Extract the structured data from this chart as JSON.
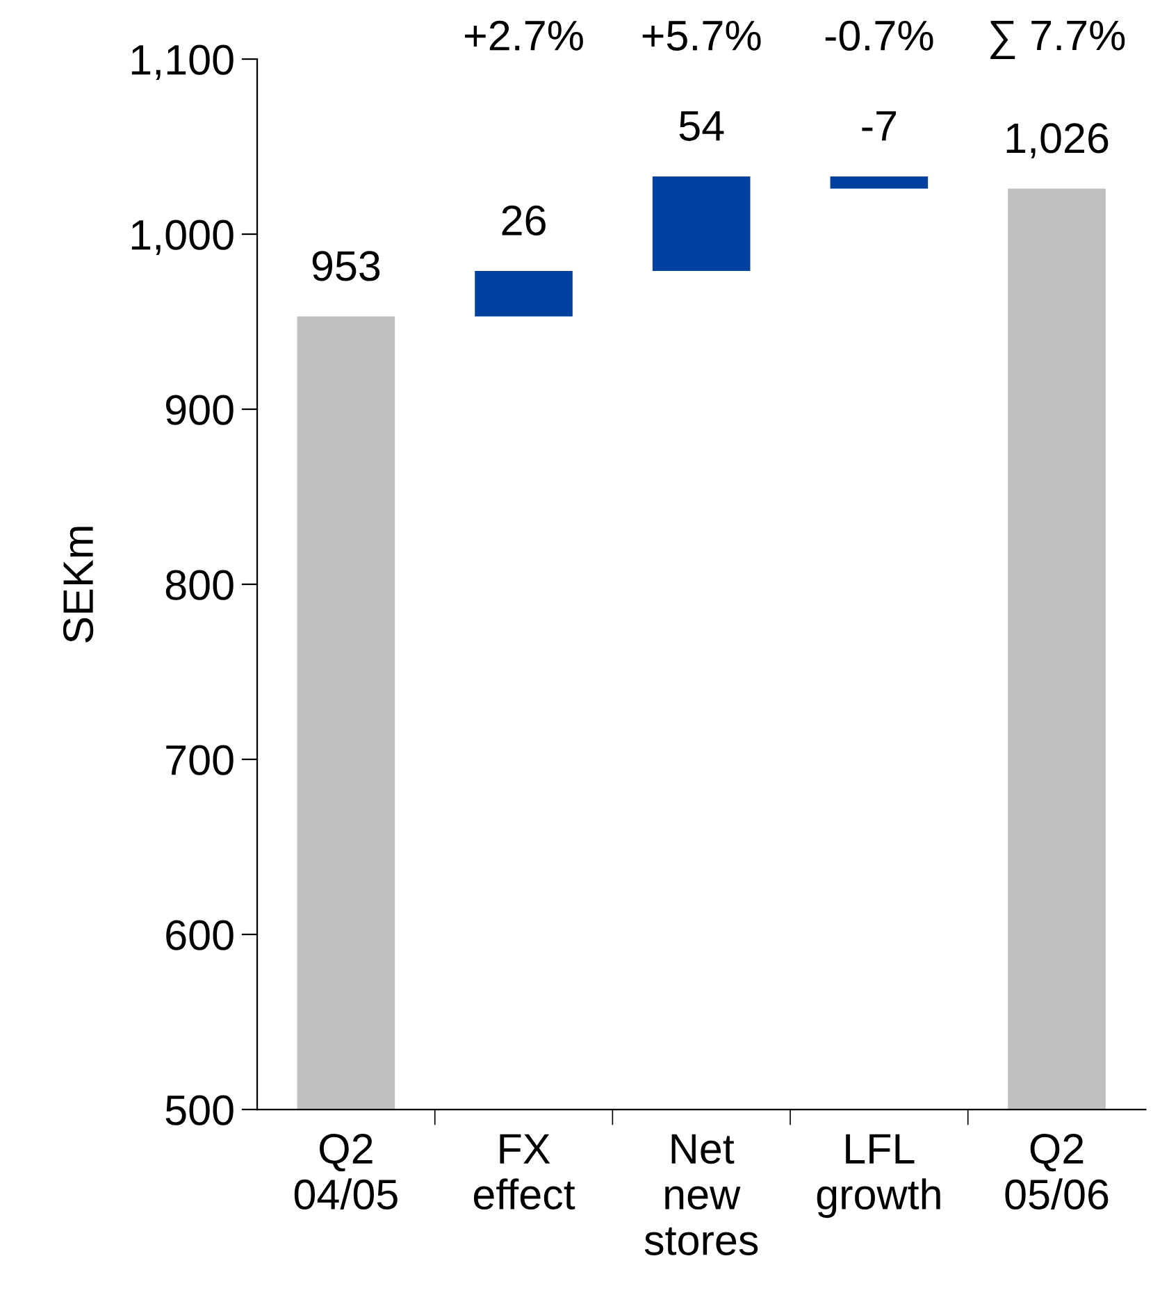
{
  "chart_data": {
    "type": "bar",
    "categories": [
      "Q2\n04/05",
      "FX\neffect",
      "Net\nnew\nstores",
      "LFL\ngrowth",
      "Q2\n05/06"
    ],
    "values": [
      953,
      26,
      54,
      -7,
      1026
    ],
    "base": [
      0,
      953,
      979,
      1033,
      0
    ],
    "colors": [
      "#c0c0c0",
      "#0041a0",
      "#0041a0",
      "#0041a0",
      "#c0c0c0"
    ],
    "value_labels": [
      "953",
      "26",
      "54",
      "-7",
      "1,026"
    ],
    "ylabel": "SEKm",
    "ylim": [
      500,
      1100
    ],
    "yticks": [
      500,
      600,
      700,
      800,
      900,
      {
        "value": 1000,
        "label": "1,000"
      },
      {
        "value": 1100,
        "label": "1,100"
      }
    ],
    "annotations": [
      "+2.7%",
      "+5.7%",
      "-0.7%",
      "∑ 7.7%"
    ],
    "grid": false,
    "legend": false
  }
}
